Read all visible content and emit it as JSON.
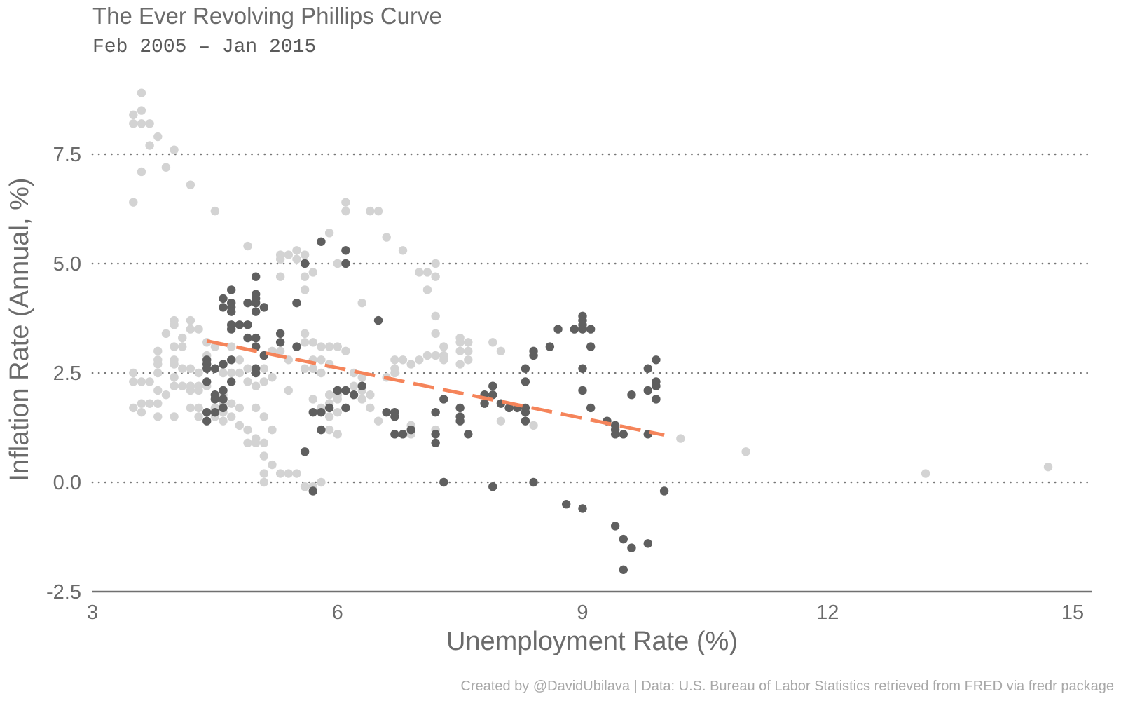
{
  "chart_data": {
    "type": "scatter",
    "title": "The Ever Revolving Phillips Curve",
    "subtitle": "Feb 2005 – Jan 2015",
    "caption": "Created by @DavidUbilava | Data: U.S. Bureau of Labor Statistics retrieved from FRED via fredr package",
    "xlabel": "Unemployment Rate (%)",
    "ylabel": "Inflation Rate (Annual, %)",
    "xlim": [
      3,
      15.2
    ],
    "ylim": [
      -2.5,
      9.3
    ],
    "xticks": [
      3,
      6,
      9,
      12,
      15
    ],
    "xtick_labels": [
      "3",
      "6",
      "9",
      "12",
      "15"
    ],
    "yticks": [
      -2.5,
      0,
      2.5,
      5,
      7.5
    ],
    "ytick_labels": [
      "-2.5",
      "0.0",
      "2.5",
      "5.0",
      "7.5"
    ],
    "grid": "horizontal dotted",
    "colors": {
      "highlight": "#5f5f5f",
      "background_points": "#d3d3d3",
      "trend": "#f5845a",
      "grid": "#777777",
      "text": "#6b6b6b"
    },
    "series": [
      {
        "role": "background",
        "points": [
          [
            3.5,
            8.4
          ],
          [
            3.5,
            8.2
          ],
          [
            3.6,
            8.9
          ],
          [
            3.6,
            8.5
          ],
          [
            3.6,
            8.2
          ],
          [
            3.7,
            8.2
          ],
          [
            3.8,
            7.9
          ],
          [
            3.7,
            7.7
          ],
          [
            4.0,
            7.6
          ],
          [
            3.6,
            7.1
          ],
          [
            3.9,
            7.2
          ],
          [
            4.2,
            6.8
          ],
          [
            3.5,
            6.4
          ],
          [
            4.5,
            6.2
          ],
          [
            3.5,
            2.5
          ],
          [
            3.5,
            2.3
          ],
          [
            3.5,
            1.7
          ],
          [
            3.6,
            2.3
          ],
          [
            3.6,
            1.8
          ],
          [
            3.6,
            1.6
          ],
          [
            3.7,
            2.3
          ],
          [
            3.7,
            1.8
          ],
          [
            3.8,
            3.0
          ],
          [
            3.8,
            2.8
          ],
          [
            3.8,
            2.7
          ],
          [
            3.8,
            2.5
          ],
          [
            3.8,
            2.1
          ],
          [
            3.8,
            1.8
          ],
          [
            3.8,
            1.5
          ],
          [
            3.9,
            3.4
          ],
          [
            3.9,
            2.0
          ],
          [
            4.0,
            3.7
          ],
          [
            4.0,
            3.6
          ],
          [
            4.0,
            3.1
          ],
          [
            4.0,
            2.8
          ],
          [
            4.0,
            2.7
          ],
          [
            4.0,
            2.4
          ],
          [
            4.0,
            2.2
          ],
          [
            4.0,
            1.5
          ],
          [
            4.1,
            3.3
          ],
          [
            4.1,
            3.1
          ],
          [
            4.1,
            2.6
          ],
          [
            4.1,
            2.2
          ],
          [
            4.2,
            3.7
          ],
          [
            4.2,
            3.5
          ],
          [
            4.2,
            2.6
          ],
          [
            4.2,
            2.2
          ],
          [
            4.2,
            2.1
          ],
          [
            4.2,
            1.7
          ],
          [
            4.3,
            3.5
          ],
          [
            4.3,
            2.5
          ],
          [
            4.3,
            2.2
          ],
          [
            4.3,
            2.1
          ],
          [
            4.3,
            1.7
          ],
          [
            4.3,
            1.5
          ],
          [
            4.4,
            3.2
          ],
          [
            4.4,
            2.9
          ],
          [
            4.4,
            2.2
          ],
          [
            4.4,
            1.6
          ],
          [
            4.5,
            3.1
          ],
          [
            4.5,
            2.6
          ],
          [
            4.5,
            2.0
          ],
          [
            4.5,
            1.7
          ],
          [
            4.5,
            1.5
          ],
          [
            4.6,
            2.7
          ],
          [
            4.6,
            2.5
          ],
          [
            4.6,
            2.0
          ],
          [
            4.6,
            1.8
          ],
          [
            4.6,
            1.6
          ],
          [
            4.6,
            1.4
          ],
          [
            4.7,
            3.1
          ],
          [
            4.7,
            2.5
          ],
          [
            4.7,
            1.8
          ],
          [
            4.7,
            1.5
          ],
          [
            4.8,
            2.8
          ],
          [
            4.8,
            2.5
          ],
          [
            4.8,
            1.7
          ],
          [
            4.8,
            1.3
          ],
          [
            4.9,
            5.4
          ],
          [
            4.9,
            2.6
          ],
          [
            4.9,
            2.3
          ],
          [
            4.9,
            1.2
          ],
          [
            4.9,
            0.9
          ],
          [
            5.0,
            2.2
          ],
          [
            5.0,
            1.7
          ],
          [
            5.0,
            1.0
          ],
          [
            5.0,
            0.9
          ],
          [
            5.1,
            2.9
          ],
          [
            5.1,
            2.6
          ],
          [
            5.1,
            2.3
          ],
          [
            5.1,
            1.5
          ],
          [
            5.1,
            0.9
          ],
          [
            5.1,
            0.6
          ],
          [
            5.1,
            0.2
          ],
          [
            5.1,
            0.0
          ],
          [
            5.2,
            3.0
          ],
          [
            5.2,
            2.4
          ],
          [
            5.2,
            1.2
          ],
          [
            5.2,
            0.4
          ],
          [
            5.3,
            5.2
          ],
          [
            5.3,
            5.1
          ],
          [
            5.3,
            4.7
          ],
          [
            5.3,
            3.0
          ],
          [
            5.3,
            0.2
          ],
          [
            5.4,
            5.2
          ],
          [
            5.4,
            2.8
          ],
          [
            5.4,
            2.1
          ],
          [
            5.4,
            0.2
          ],
          [
            5.5,
            5.3
          ],
          [
            5.5,
            5.1
          ],
          [
            5.5,
            0.2
          ],
          [
            5.6,
            5.2
          ],
          [
            5.6,
            4.7
          ],
          [
            5.6,
            4.4
          ],
          [
            5.6,
            3.4
          ],
          [
            5.6,
            3.2
          ],
          [
            5.6,
            2.6
          ],
          [
            5.6,
            -0.1
          ],
          [
            5.6,
            -0.1
          ],
          [
            5.7,
            4.8
          ],
          [
            5.7,
            3.2
          ],
          [
            5.7,
            2.8
          ],
          [
            5.7,
            2.6
          ],
          [
            5.7,
            1.9
          ],
          [
            5.7,
            -0.1
          ],
          [
            5.8,
            3.1
          ],
          [
            5.8,
            2.8
          ],
          [
            5.8,
            2.5
          ],
          [
            5.8,
            1.7
          ],
          [
            5.8,
            0.0
          ],
          [
            5.9,
            5.7
          ],
          [
            5.9,
            3.1
          ],
          [
            5.9,
            2.7
          ],
          [
            5.9,
            2.0
          ],
          [
            5.9,
            1.8
          ],
          [
            5.9,
            1.5
          ],
          [
            5.9,
            1.2
          ],
          [
            6.0,
            5.0
          ],
          [
            6.0,
            3.1
          ],
          [
            6.0,
            2.0
          ],
          [
            6.0,
            1.9
          ],
          [
            6.0,
            1.6
          ],
          [
            6.0,
            1.1
          ],
          [
            6.1,
            6.4
          ],
          [
            6.1,
            6.2
          ],
          [
            6.1,
            5.3
          ],
          [
            6.1,
            3.0
          ],
          [
            6.1,
            1.7
          ],
          [
            6.2,
            2.5
          ],
          [
            6.2,
            2.2
          ],
          [
            6.3,
            4.1
          ],
          [
            6.3,
            2.4
          ],
          [
            6.3,
            2.1
          ],
          [
            6.3,
            1.9
          ],
          [
            6.4,
            6.2
          ],
          [
            6.4,
            2.0
          ],
          [
            6.4,
            1.7
          ],
          [
            6.5,
            6.2
          ],
          [
            6.5,
            1.4
          ],
          [
            6.6,
            5.6
          ],
          [
            6.6,
            2.4
          ],
          [
            6.7,
            2.8
          ],
          [
            6.7,
            2.6
          ],
          [
            6.7,
            2.5
          ],
          [
            6.8,
            5.3
          ],
          [
            6.8,
            2.8
          ],
          [
            6.9,
            2.7
          ],
          [
            6.9,
            1.3
          ],
          [
            6.9,
            1.1
          ],
          [
            7.0,
            4.8
          ],
          [
            7.0,
            2.8
          ],
          [
            7.1,
            4.8
          ],
          [
            7.1,
            4.4
          ],
          [
            7.1,
            2.9
          ],
          [
            7.2,
            5.0
          ],
          [
            7.2,
            4.7
          ],
          [
            7.2,
            3.8
          ],
          [
            7.2,
            3.4
          ],
          [
            7.2,
            2.9
          ],
          [
            7.2,
            1.2
          ],
          [
            7.3,
            3.1
          ],
          [
            7.3,
            2.9
          ],
          [
            7.3,
            2.8
          ],
          [
            7.5,
            3.3
          ],
          [
            7.5,
            3.2
          ],
          [
            7.5,
            3.0
          ],
          [
            7.5,
            2.7
          ],
          [
            7.6,
            3.2
          ],
          [
            7.6,
            3.0
          ],
          [
            7.6,
            2.8
          ],
          [
            7.9,
            3.2
          ],
          [
            8.0,
            3.0
          ],
          [
            8.0,
            1.4
          ],
          [
            8.4,
            1.3
          ],
          [
            10.2,
            1.0
          ],
          [
            11.0,
            0.7
          ],
          [
            13.2,
            0.2
          ],
          [
            14.7,
            0.35
          ]
        ]
      },
      {
        "role": "highlight",
        "points": [
          [
            4.4,
            2.8
          ],
          [
            4.4,
            2.7
          ],
          [
            4.4,
            2.6
          ],
          [
            4.4,
            2.3
          ],
          [
            4.4,
            1.6
          ],
          [
            4.4,
            1.4
          ],
          [
            4.5,
            2.6
          ],
          [
            4.5,
            2.0
          ],
          [
            4.5,
            1.9
          ],
          [
            4.5,
            1.6
          ],
          [
            4.6,
            4.2
          ],
          [
            4.6,
            4.0
          ],
          [
            4.6,
            2.7
          ],
          [
            4.6,
            2.1
          ],
          [
            4.6,
            1.9
          ],
          [
            4.6,
            1.7
          ],
          [
            4.7,
            4.4
          ],
          [
            4.7,
            4.1
          ],
          [
            4.7,
            4.0
          ],
          [
            4.7,
            3.9
          ],
          [
            4.7,
            3.6
          ],
          [
            4.7,
            3.5
          ],
          [
            4.7,
            2.8
          ],
          [
            4.7,
            2.3
          ],
          [
            4.8,
            3.6
          ],
          [
            4.9,
            4.1
          ],
          [
            4.9,
            3.6
          ],
          [
            4.9,
            3.3
          ],
          [
            5.0,
            4.7
          ],
          [
            5.0,
            4.3
          ],
          [
            5.0,
            4.2
          ],
          [
            5.0,
            4.1
          ],
          [
            5.0,
            3.9
          ],
          [
            5.0,
            3.3
          ],
          [
            5.0,
            3.1
          ],
          [
            5.0,
            2.6
          ],
          [
            5.0,
            2.5
          ],
          [
            5.1,
            4.0
          ],
          [
            5.1,
            2.9
          ],
          [
            5.3,
            3.4
          ],
          [
            5.3,
            3.2
          ],
          [
            5.5,
            4.1
          ],
          [
            5.5,
            3.1
          ],
          [
            5.6,
            5.0
          ],
          [
            5.6,
            0.7
          ],
          [
            5.7,
            1.6
          ],
          [
            5.7,
            -0.2
          ],
          [
            5.8,
            5.5
          ],
          [
            5.8,
            1.6
          ],
          [
            5.8,
            1.2
          ],
          [
            5.9,
            1.7
          ],
          [
            6.0,
            2.1
          ],
          [
            6.1,
            5.3
          ],
          [
            6.1,
            5.0
          ],
          [
            6.1,
            2.1
          ],
          [
            6.1,
            1.7
          ],
          [
            6.2,
            2.0
          ],
          [
            6.3,
            2.2
          ],
          [
            6.5,
            3.7
          ],
          [
            6.6,
            1.6
          ],
          [
            6.7,
            1.6
          ],
          [
            6.7,
            1.5
          ],
          [
            6.7,
            1.1
          ],
          [
            6.8,
            1.1
          ],
          [
            6.9,
            1.2
          ],
          [
            7.2,
            1.6
          ],
          [
            7.2,
            1.1
          ],
          [
            7.2,
            0.9
          ],
          [
            7.3,
            1.9
          ],
          [
            7.3,
            0.0
          ],
          [
            7.5,
            1.7
          ],
          [
            7.5,
            1.5
          ],
          [
            7.5,
            1.4
          ],
          [
            7.6,
            1.1
          ],
          [
            7.8,
            2.0
          ],
          [
            7.8,
            1.8
          ],
          [
            7.9,
            2.0
          ],
          [
            7.9,
            2.2
          ],
          [
            7.9,
            -0.1
          ],
          [
            8.0,
            1.8
          ],
          [
            8.1,
            1.7
          ],
          [
            8.2,
            1.7
          ],
          [
            8.3,
            1.7
          ],
          [
            8.3,
            1.6
          ],
          [
            8.3,
            1.4
          ],
          [
            8.3,
            2.3
          ],
          [
            8.3,
            2.6
          ],
          [
            8.4,
            3.0
          ],
          [
            8.4,
            2.9
          ],
          [
            8.4,
            0.0
          ],
          [
            8.6,
            3.1
          ],
          [
            8.7,
            3.5
          ],
          [
            8.8,
            -0.5
          ],
          [
            8.9,
            3.5
          ],
          [
            9.0,
            3.8
          ],
          [
            9.0,
            3.7
          ],
          [
            9.0,
            3.6
          ],
          [
            9.0,
            3.5
          ],
          [
            9.0,
            2.6
          ],
          [
            9.0,
            2.1
          ],
          [
            9.0,
            -0.6
          ],
          [
            9.1,
            3.5
          ],
          [
            9.1,
            3.1
          ],
          [
            9.1,
            1.7
          ],
          [
            9.3,
            1.4
          ],
          [
            9.4,
            1.3
          ],
          [
            9.4,
            1.2
          ],
          [
            9.4,
            1.1
          ],
          [
            9.5,
            1.1
          ],
          [
            9.4,
            -1.0
          ],
          [
            9.5,
            -1.3
          ],
          [
            9.6,
            -1.5
          ],
          [
            9.5,
            -2.0
          ],
          [
            9.6,
            2.0
          ],
          [
            9.8,
            2.6
          ],
          [
            9.8,
            2.1
          ],
          [
            9.8,
            1.1
          ],
          [
            9.8,
            -1.4
          ],
          [
            9.9,
            2.8
          ],
          [
            9.9,
            2.3
          ],
          [
            9.9,
            2.2
          ],
          [
            9.9,
            1.9
          ],
          [
            10.0,
            -0.2
          ]
        ]
      }
    ],
    "trend_line": {
      "style": "dashed",
      "points": [
        [
          4.4,
          3.23
        ],
        [
          10.0,
          1.08
        ]
      ]
    }
  }
}
